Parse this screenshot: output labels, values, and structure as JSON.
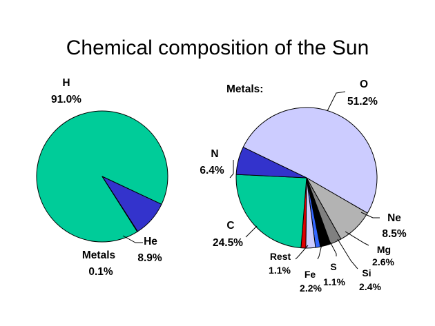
{
  "colors": {
    "hydrogen": "#00cc99",
    "helium": "#3333cc",
    "oxygen": "#ccccff",
    "neon": "#b3b3b3",
    "magnesium": "#808080",
    "silicon": "#000000",
    "sulfur": "#3366ff",
    "iron": "#ccccff",
    "rest": "#dd0000",
    "carbon": "#00cc99",
    "nitrogen": "#3333cc",
    "outline": "#000000"
  },
  "chart_data": [
    {
      "type": "pie",
      "title": "Chemical composition of the Sun",
      "slices": [
        {
          "name": "H",
          "value": 91.0,
          "value_label": "91.0%",
          "color": "#00cc99"
        },
        {
          "name": "He",
          "value": 8.9,
          "value_label": "8.9%",
          "color": "#3333cc"
        },
        {
          "name": "Metals",
          "value": 0.1,
          "value_label": "0.1%",
          "color": "#000000"
        }
      ]
    },
    {
      "type": "pie",
      "title": "Metals:",
      "slices": [
        {
          "name": "O",
          "value": 51.2,
          "value_label": "51.2%",
          "color": "#ccccff"
        },
        {
          "name": "Ne",
          "value": 8.5,
          "value_label": "8.5%",
          "color": "#b3b3b3"
        },
        {
          "name": "Mg",
          "value": 2.6,
          "value_label": "2.6%",
          "color": "#808080"
        },
        {
          "name": "Si",
          "value": 2.4,
          "value_label": "2.4%",
          "color": "#000000"
        },
        {
          "name": "S",
          "value": 1.1,
          "value_label": "1.1%",
          "color": "#3366ff"
        },
        {
          "name": "Fe",
          "value": 2.2,
          "value_label": "2.2%",
          "color": "#ccccff"
        },
        {
          "name": "Rest",
          "value": 1.1,
          "value_label": "1.1%",
          "color": "#dd0000"
        },
        {
          "name": "C",
          "value": 24.5,
          "value_label": "24.5%",
          "color": "#00cc99"
        },
        {
          "name": "N",
          "value": 6.4,
          "value_label": "6.4%",
          "color": "#3333cc"
        }
      ]
    }
  ]
}
